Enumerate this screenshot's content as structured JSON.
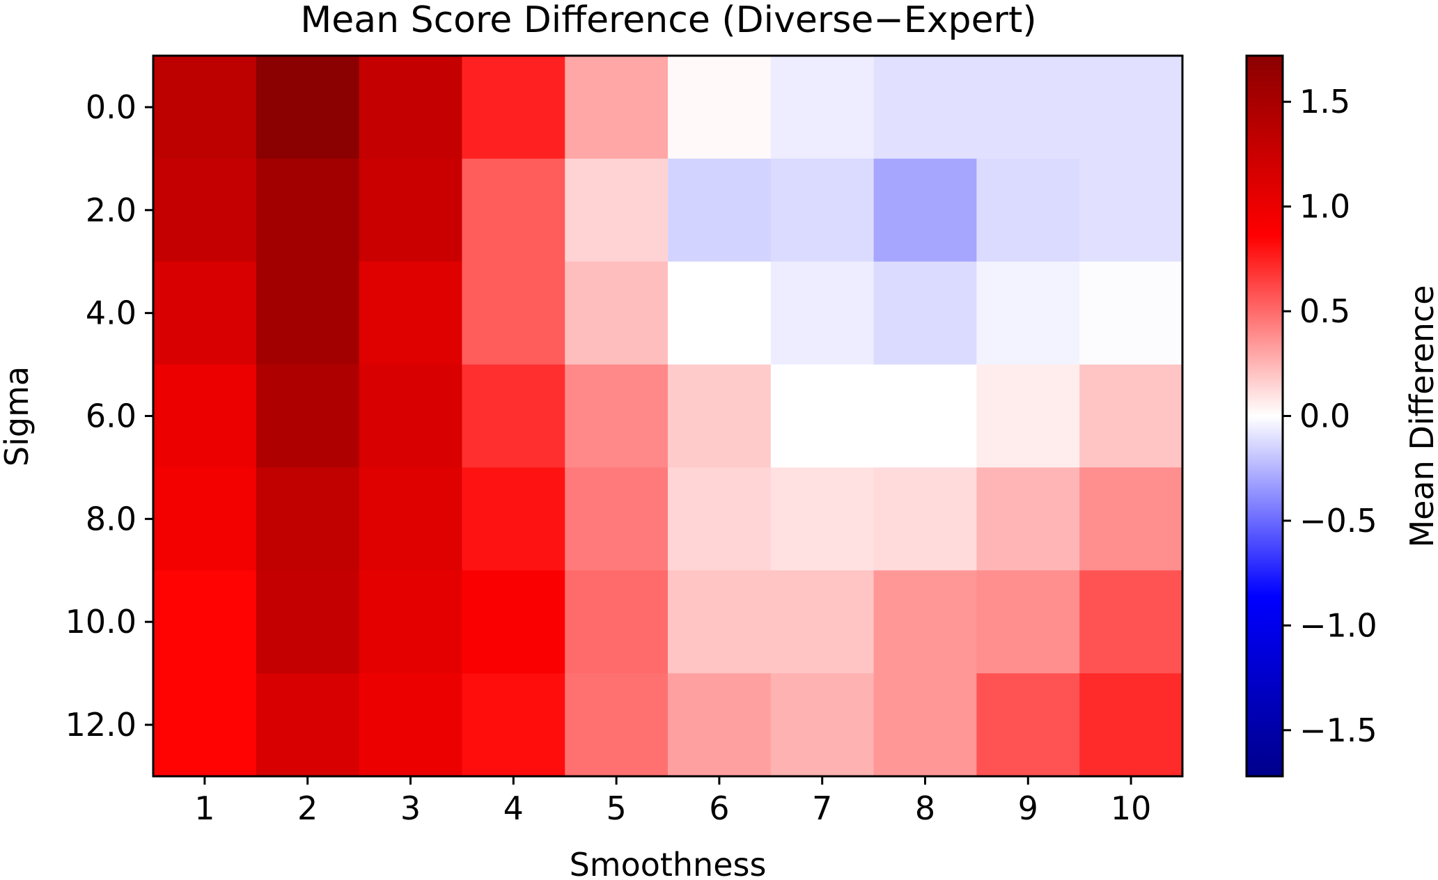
{
  "chart_data": {
    "type": "heatmap",
    "title": "Mean Score Difference (Diverse−Expert)",
    "xlabel": "Smoothness",
    "ylabel": "Sigma",
    "x": [
      1,
      2,
      3,
      4,
      5,
      6,
      7,
      8,
      9,
      10
    ],
    "x_tick_labels": [
      "1",
      "2",
      "3",
      "4",
      "5",
      "6",
      "7",
      "8",
      "9",
      "10"
    ],
    "y": [
      0.0,
      2.0,
      4.0,
      6.0,
      8.0,
      10.0,
      12.0
    ],
    "y_tick_labels": [
      "0.0",
      "2.0",
      "4.0",
      "6.0",
      "8.0",
      "10.0",
      "12.0"
    ],
    "values": [
      [
        1.35,
        1.72,
        1.3,
        0.75,
        0.3,
        0.02,
        -0.06,
        -0.1,
        -0.1,
        -0.1
      ],
      [
        1.3,
        1.55,
        1.25,
        0.55,
        0.15,
        -0.15,
        -0.12,
        -0.3,
        -0.12,
        -0.1
      ],
      [
        1.15,
        1.55,
        1.1,
        0.55,
        0.22,
        0.0,
        -0.06,
        -0.12,
        -0.04,
        -0.01
      ],
      [
        1.0,
        1.45,
        1.15,
        0.7,
        0.4,
        0.18,
        0.0,
        0.0,
        0.06,
        0.2
      ],
      [
        0.95,
        1.32,
        1.1,
        0.8,
        0.45,
        0.14,
        0.1,
        0.12,
        0.25,
        0.38
      ],
      [
        0.85,
        1.3,
        1.05,
        0.9,
        0.5,
        0.2,
        0.2,
        0.35,
        0.38,
        0.58
      ],
      [
        0.85,
        1.15,
        1.0,
        0.82,
        0.48,
        0.32,
        0.26,
        0.35,
        0.58,
        0.72
      ]
    ],
    "colormap": "seismic",
    "vmin": -1.72,
    "vmax": 1.72,
    "colorbar": {
      "label": "Mean Difference",
      "ticks": [
        1.5,
        1.0,
        0.5,
        0.0,
        -0.5,
        -1.0,
        -1.5
      ],
      "tick_labels": [
        "1.5",
        "1.0",
        "0.5",
        "0.0",
        "−0.5",
        "−1.0",
        "−1.5"
      ],
      "colors": {
        "low": "#00008b",
        "mid": "#ffffff",
        "high": "#8b0000"
      }
    },
    "grid": false
  }
}
